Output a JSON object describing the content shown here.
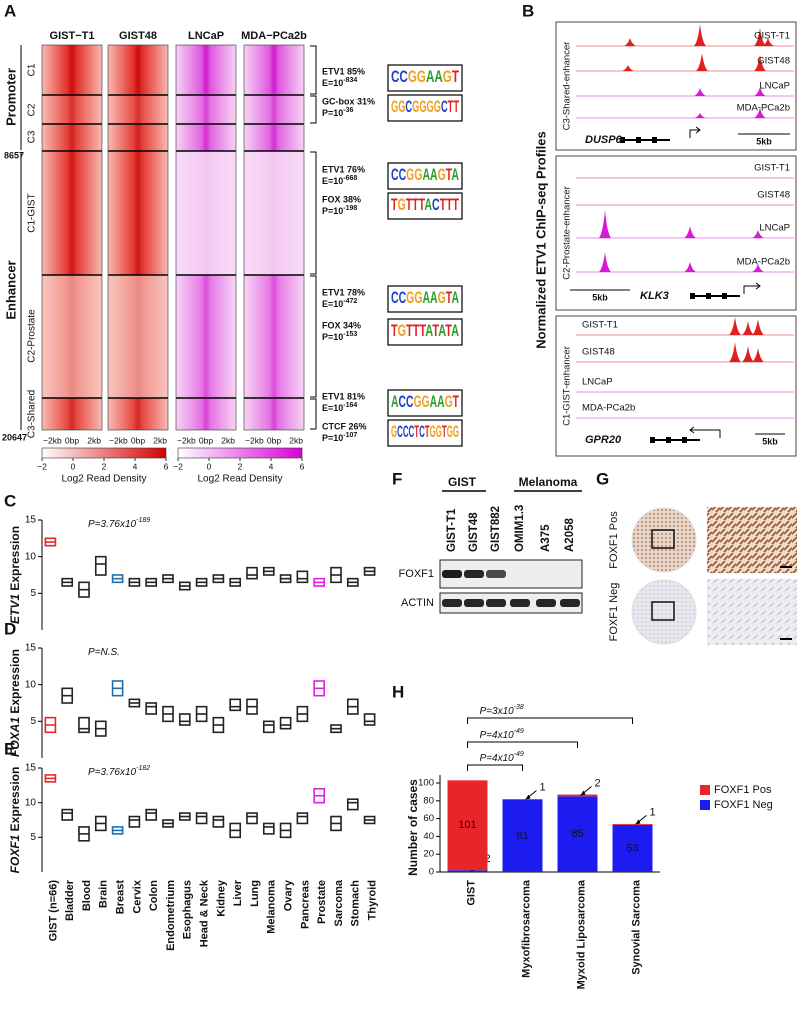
{
  "panel_a": {
    "label": "A",
    "columns": [
      "GIST−T1",
      "GIST48",
      "LNCaP",
      "MDA−PCa2b"
    ],
    "groups": [
      "Promoter",
      "Enhancer"
    ],
    "clusters": [
      "C1",
      "C2",
      "C3",
      "C1-GIST",
      "C2-Prostate",
      "C3-Shared"
    ],
    "counts": [
      "8657",
      "20647"
    ],
    "x_labels": [
      "−2kb",
      "0bp",
      "2kb"
    ],
    "colorbar_lim": [
      -2,
      6
    ],
    "colorbar_ticks": [
      {
        "value": -2,
        "label": "−2"
      },
      0,
      2,
      4,
      6
    ],
    "colorbar_label": "Log2 Read Density",
    "motifs": [
      {
        "name": "ETV1 85%",
        "stat": "E=10",
        "exp": "-834",
        "logo": "CCGGAAGT"
      },
      {
        "name": "GC-box 31%",
        "stat": "P=10",
        "exp": "-36",
        "logo": "GGCGGGGCTT"
      },
      {
        "name": "ETV1 76%",
        "stat": "E=10",
        "exp": "-668",
        "logo": "CCGGAAGTA"
      },
      {
        "name": "FOX 38%",
        "stat": "P=10",
        "exp": "-198",
        "logo": "TGTTTACTTT"
      },
      {
        "name": "ETV1 78%",
        "stat": "E=10",
        "exp": "-472",
        "logo": "CCGGAAGTA"
      },
      {
        "name": "FOX 34%",
        "stat": "P=10",
        "exp": "-153",
        "logo": "TGTTTATATA"
      },
      {
        "name": "ETV1 81%",
        "stat": "E=10",
        "exp": "-164",
        "logo": "ACCGGAAGT"
      },
      {
        "name": "CTCF 26%",
        "stat": "P=10",
        "exp": "-107",
        "logo": "GCCCTCTGGTGG"
      }
    ]
  },
  "panel_b": {
    "label": "B",
    "y_label": "Normalized ETV1 ChIP-seq Profiles",
    "loci": [
      {
        "region": "C3-Shared-enhancer",
        "gene": "DUSP6",
        "scale": "5kb",
        "tracks": [
          "GIST-T1",
          "GIST48",
          "LNCaP",
          "MDA-PCa2b"
        ]
      },
      {
        "region": "C2-Prostate-enhancer",
        "gene": "KLK3",
        "scale": "5kb",
        "tracks": [
          "GIST-T1",
          "GIST48",
          "LNCaP",
          "MDA-PCa2b"
        ]
      },
      {
        "region": "C1-GIST-enhancer",
        "gene": "GPR20",
        "scale": "5kb",
        "tracks": [
          "GIST-T1",
          "GIST48",
          "LNCaP",
          "MDA-PCa2b"
        ]
      }
    ]
  },
  "panel_f": {
    "label": "F",
    "groups": [
      "GIST",
      "Melanoma"
    ],
    "lanes": [
      "GIST-T1",
      "GIST48",
      "GIST882",
      "OMIM1.3",
      "A375",
      "A2058"
    ],
    "rows": [
      "FOXF1",
      "ACTIN"
    ]
  },
  "panel_g": {
    "label": "G",
    "rows": [
      "FOXF1 Pos",
      "FOXF1 Neg"
    ]
  },
  "expression": {
    "categories": [
      "GIST (n=66)",
      "Bladder",
      "Blood",
      "Brain",
      "Breast",
      "Cervix",
      "Colon",
      "Endometrium",
      "Esophagus",
      "Head & Neck",
      "Kidney",
      "Liver",
      "Lung",
      "Melanoma",
      "Ovary",
      "Pancreas",
      "Prostate",
      "Sarcoma",
      "Stomach",
      "Thyroid"
    ],
    "colors": [
      "#e8262a",
      "#222222",
      "#222222",
      "#222222",
      "#1f6fae",
      "#222222",
      "#222222",
      "#222222",
      "#222222",
      "#222222",
      "#222222",
      "#222222",
      "#222222",
      "#222222",
      "#222222",
      "#222222",
      "#e020e0",
      "#222222",
      "#222222",
      "#222222"
    ]
  },
  "chart_data": [
    {
      "type": "box",
      "label": "C",
      "gene": "ETV1",
      "y_label": " Expression",
      "annotation": "P=3.76x10",
      "annotation_exp": "-189",
      "ylim": [
        0,
        15
      ],
      "yticks": [
        5,
        10,
        15
      ],
      "q1": [
        11.5,
        6,
        4.5,
        7.5,
        6.5,
        6,
        6,
        6.5,
        5.5,
        6,
        6.5,
        6,
        7,
        7.5,
        6.5,
        6.5,
        6,
        6.5,
        6,
        7.5
      ],
      "median": [
        12,
        6.5,
        5.5,
        9,
        7,
        6.5,
        6.5,
        7,
        6,
        6.5,
        7,
        6.5,
        7.5,
        8,
        7,
        7,
        6.5,
        7.5,
        6.5,
        8
      ],
      "q3": [
        12.5,
        7,
        6.5,
        10,
        7.5,
        7,
        7,
        7.5,
        6.5,
        7,
        7.5,
        7,
        8.5,
        8.5,
        7.5,
        8,
        7,
        8.5,
        7,
        8.5
      ]
    },
    {
      "type": "box",
      "label": "D",
      "gene": "FOXA1",
      "y_label": " Expression",
      "annotation": "P=N.S.",
      "ylim": [
        0,
        15
      ],
      "yticks": [
        5,
        10,
        15
      ],
      "q1": [
        3.5,
        7.5,
        3.5,
        3,
        8.5,
        7,
        6,
        5,
        4.5,
        5,
        3.5,
        6.5,
        6,
        3.5,
        4,
        5,
        8.5,
        3.5,
        6,
        4.5
      ],
      "median": [
        4.5,
        8.5,
        4,
        4,
        9.5,
        7.5,
        7,
        6,
        5,
        6,
        4.5,
        7,
        7,
        4.5,
        4.5,
        6,
        9.5,
        4,
        7,
        5
      ],
      "q3": [
        5.5,
        9.5,
        5.5,
        5,
        10.5,
        8,
        7.5,
        7,
        6,
        7,
        5.5,
        8,
        8,
        5,
        5.5,
        7,
        10.5,
        4.5,
        8,
        6
      ]
    },
    {
      "type": "box",
      "label": "E",
      "gene": "FOXF1",
      "y_label": " Expression",
      "annotation": "P=3.76x10",
      "annotation_exp": "-182",
      "ylim": [
        0,
        15
      ],
      "yticks": [
        5,
        10,
        15
      ],
      "q1": [
        13,
        7.5,
        4.5,
        6,
        5.5,
        6.5,
        7.5,
        6.5,
        7.5,
        7,
        6.5,
        5,
        7,
        5.5,
        5,
        7,
        10,
        6,
        9,
        7
      ],
      "median": [
        13.5,
        8.5,
        5.5,
        7,
        6,
        7.5,
        8.5,
        7,
        8,
        8,
        7.5,
        6,
        8,
        6.5,
        6,
        8,
        11,
        7,
        10,
        7.5
      ],
      "q3": [
        14,
        9,
        6.5,
        8,
        6.5,
        8,
        9,
        7.5,
        8.5,
        8.5,
        8,
        7,
        8.5,
        7,
        7,
        8.5,
        12,
        8,
        10.5,
        8
      ]
    },
    {
      "type": "stacked-bar",
      "label": "H",
      "y_label": "Number of cases",
      "categories": [
        "GIST",
        "Myxofibrosarcoma",
        "Myxoid Liposarcoma",
        "Synovial Sarcoma"
      ],
      "series": [
        {
          "name": "FOXF1 Pos",
          "color": "#e8262a",
          "values": [
            101,
            1,
            2,
            1
          ]
        },
        {
          "name": "FOXF1 Neg",
          "color": "#1c1cf0",
          "values": [
            2,
            81,
            85,
            53
          ]
        }
      ],
      "ylim": [
        0,
        100
      ],
      "yticks": [
        0,
        20,
        40,
        60,
        80,
        100
      ],
      "comparisons": [
        {
          "text": "P=4x10",
          "exp": "-49"
        },
        {
          "text": "P=4x10",
          "exp": "-49"
        },
        {
          "text": "P=3x10",
          "exp": "-38"
        }
      ]
    }
  ]
}
